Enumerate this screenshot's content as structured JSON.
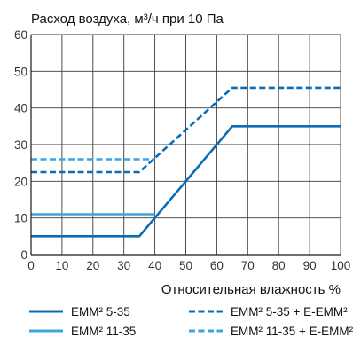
{
  "chart_data": {
    "type": "line",
    "title": "Расход воздуха, м³/ч при 10 Па",
    "xlabel": "Относительная влажность %",
    "ylabel": "",
    "xlim": [
      0,
      100
    ],
    "ylim": [
      0,
      60
    ],
    "x_ticks": [
      0,
      10,
      20,
      30,
      40,
      50,
      60,
      70,
      80,
      90,
      100
    ],
    "y_ticks": [
      0,
      10,
      20,
      30,
      40,
      50,
      60
    ],
    "grid": true,
    "legend_position": "bottom",
    "series": [
      {
        "name": "EMM² 5-35",
        "color": "#0a6db5",
        "style": "solid",
        "points": [
          [
            0,
            5
          ],
          [
            35,
            5
          ],
          [
            65,
            35
          ],
          [
            100,
            35
          ]
        ]
      },
      {
        "name": "EMM² 11-35",
        "color": "#3da4dd",
        "style": "solid",
        "points": [
          [
            0,
            11
          ],
          [
            40,
            11
          ]
        ]
      },
      {
        "name": "EMM² 5-35 + E-EMM²",
        "color": "#0a6db5",
        "style": "dashed",
        "points": [
          [
            0,
            22.5
          ],
          [
            35,
            22.5
          ],
          [
            65,
            45.5
          ],
          [
            100,
            45.5
          ]
        ]
      },
      {
        "name": "EMM² 11-35 + E-EMM²",
        "color": "#3da4dd",
        "style": "dashed",
        "points": [
          [
            0,
            26
          ],
          [
            40,
            26
          ]
        ]
      }
    ]
  }
}
